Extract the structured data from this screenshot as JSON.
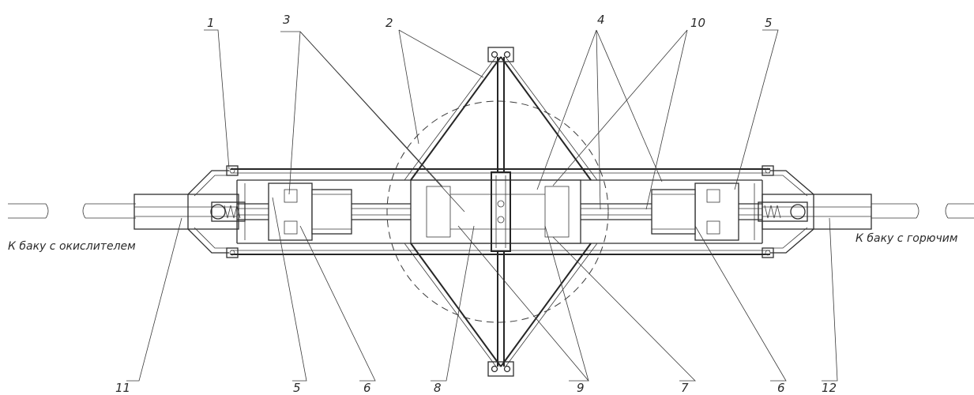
{
  "captions": {
    "left": "К баку с окислителем",
    "right": "К баку с горючим"
  },
  "labels": {
    "top_1": "1",
    "top_3": "3",
    "top_2": "2",
    "top_4": "4",
    "top_10": "10",
    "top_5": "5",
    "bottom_11": "11",
    "bottom_5": "5",
    "bottom_6a": "6",
    "bottom_8": "8",
    "bottom_9": "9",
    "bottom_7": "7",
    "bottom_6b": "6",
    "bottom_12": "12"
  }
}
